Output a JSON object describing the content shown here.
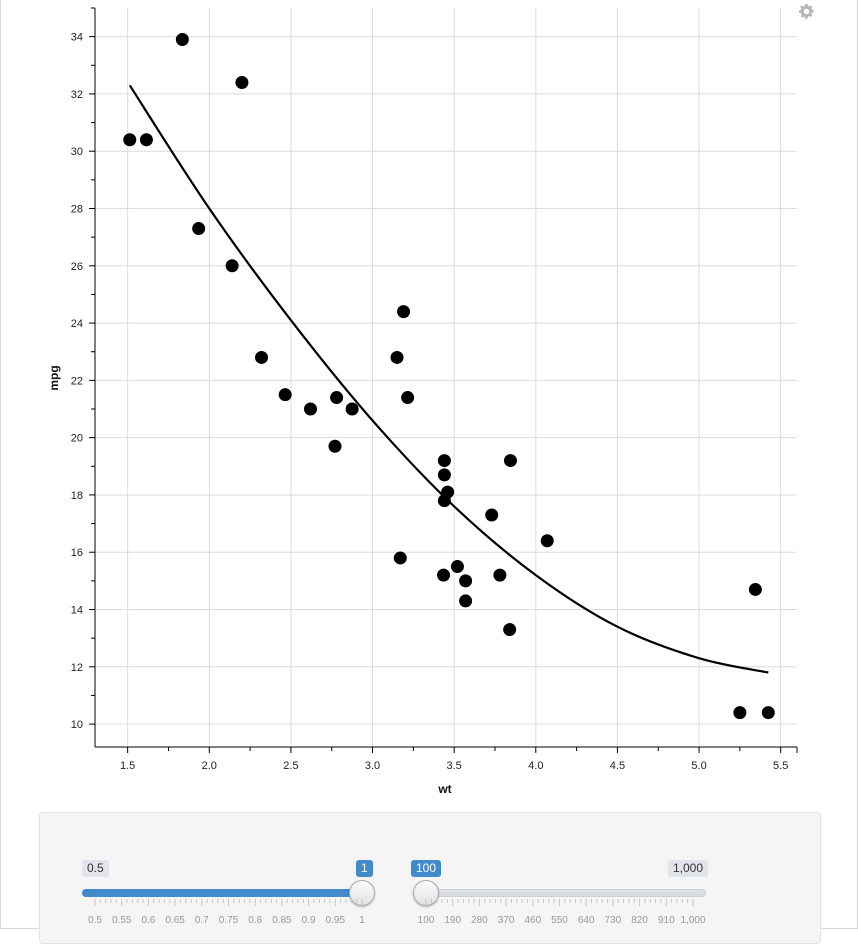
{
  "chart_data": {
    "type": "scatter",
    "xlabel": "wt",
    "ylabel": "mpg",
    "xlim": [
      1.3,
      5.6
    ],
    "ylim": [
      9.2,
      35
    ],
    "x_ticks": [
      "1.5",
      "2.0",
      "2.5",
      "3.0",
      "3.5",
      "4.0",
      "4.5",
      "5.0",
      "5.5"
    ],
    "y_ticks": [
      "10",
      "12",
      "14",
      "16",
      "18",
      "20",
      "22",
      "24",
      "26",
      "28",
      "30",
      "32",
      "34"
    ],
    "grid": true,
    "points": [
      {
        "x": 1.513,
        "y": 30.4
      },
      {
        "x": 1.615,
        "y": 30.4
      },
      {
        "x": 1.835,
        "y": 33.9
      },
      {
        "x": 1.935,
        "y": 27.3
      },
      {
        "x": 2.14,
        "y": 26.0
      },
      {
        "x": 2.2,
        "y": 32.4
      },
      {
        "x": 2.32,
        "y": 22.8
      },
      {
        "x": 2.465,
        "y": 21.5
      },
      {
        "x": 2.62,
        "y": 21.0
      },
      {
        "x": 2.77,
        "y": 19.7
      },
      {
        "x": 2.78,
        "y": 21.4
      },
      {
        "x": 2.875,
        "y": 21.0
      },
      {
        "x": 3.15,
        "y": 22.8
      },
      {
        "x": 3.17,
        "y": 15.8
      },
      {
        "x": 3.19,
        "y": 24.4
      },
      {
        "x": 3.215,
        "y": 21.4
      },
      {
        "x": 3.435,
        "y": 15.2
      },
      {
        "x": 3.44,
        "y": 18.7
      },
      {
        "x": 3.44,
        "y": 19.2
      },
      {
        "x": 3.44,
        "y": 17.8
      },
      {
        "x": 3.46,
        "y": 18.1
      },
      {
        "x": 3.52,
        "y": 15.5
      },
      {
        "x": 3.57,
        "y": 15.0
      },
      {
        "x": 3.57,
        "y": 14.3
      },
      {
        "x": 3.73,
        "y": 17.3
      },
      {
        "x": 3.78,
        "y": 15.2
      },
      {
        "x": 3.84,
        "y": 13.3
      },
      {
        "x": 3.845,
        "y": 19.2
      },
      {
        "x": 4.07,
        "y": 16.4
      },
      {
        "x": 5.25,
        "y": 10.4
      },
      {
        "x": 5.345,
        "y": 14.7
      },
      {
        "x": 5.424,
        "y": 10.4
      }
    ],
    "trend_line": [
      {
        "x": 1.513,
        "y": 32.3
      },
      {
        "x": 2.0,
        "y": 28.0
      },
      {
        "x": 2.5,
        "y": 24.1
      },
      {
        "x": 3.0,
        "y": 20.6
      },
      {
        "x": 3.5,
        "y": 17.6
      },
      {
        "x": 4.0,
        "y": 15.2
      },
      {
        "x": 4.5,
        "y": 13.4
      },
      {
        "x": 5.0,
        "y": 12.3
      },
      {
        "x": 5.424,
        "y": 11.8
      }
    ]
  },
  "controls": {
    "gear_icon": "gear-icon",
    "span_slider": {
      "min_label": "0.5",
      "value_label": "1",
      "value": 1.0,
      "min": 0.5,
      "max": 1.0,
      "grid_labels": [
        "0.5",
        "0.55",
        "0.6",
        "0.65",
        "0.7",
        "0.75",
        "0.8",
        "0.85",
        "0.9",
        "0.95",
        "1"
      ]
    },
    "points_slider": {
      "value_label": "100",
      "max_label": "1,000",
      "value": 100,
      "min": 100,
      "max": 1000,
      "grid_labels": [
        "100",
        "190",
        "280",
        "370",
        "460",
        "550",
        "640",
        "730",
        "820",
        "910",
        "1,000"
      ]
    },
    "accent_color": "#428bca"
  }
}
